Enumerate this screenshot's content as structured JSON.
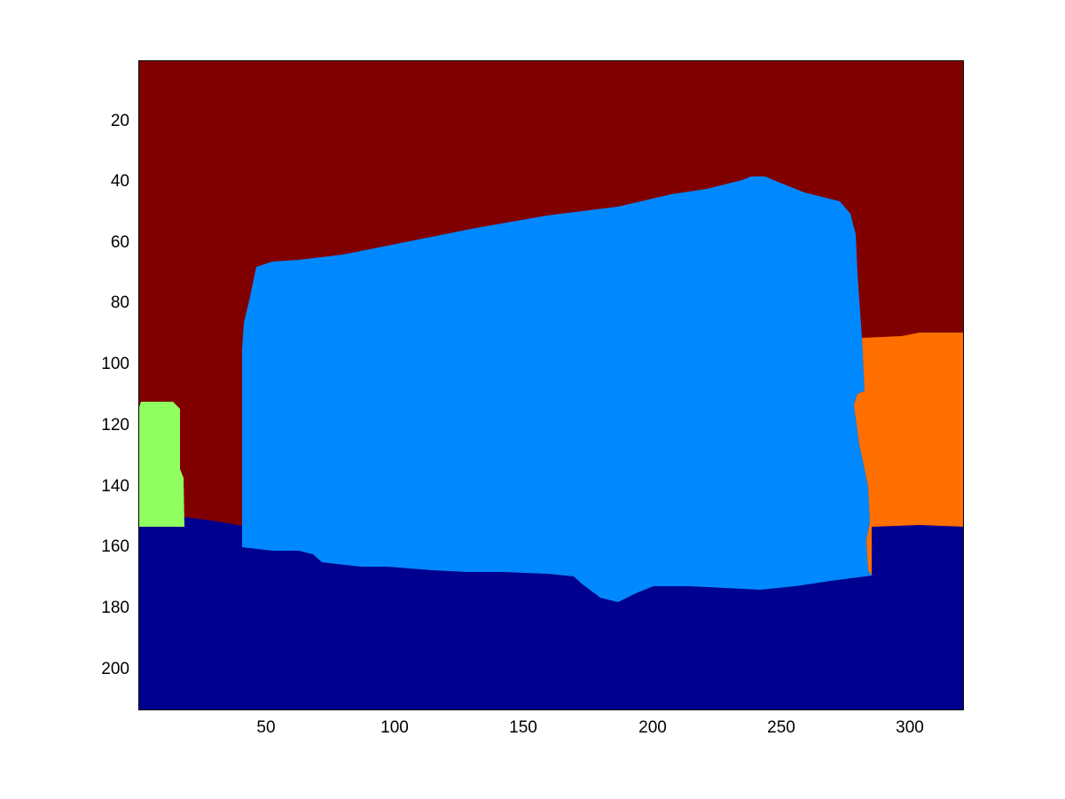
{
  "colors": {
    "background_region": "#800000",
    "main_object": "#0088ff",
    "ground": "#000090",
    "left_object": "#90ff60",
    "right_object": "#ff7000"
  },
  "axes": {
    "x_ticks": [
      "50",
      "100",
      "150",
      "200",
      "250",
      "300"
    ],
    "y_ticks": [
      "20",
      "40",
      "60",
      "80",
      "100",
      "120",
      "140",
      "160",
      "180",
      "200"
    ]
  }
}
